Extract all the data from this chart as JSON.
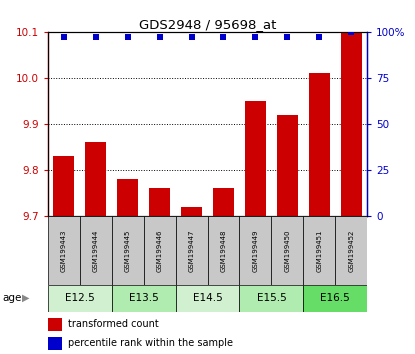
{
  "title": "GDS2948 / 95698_at",
  "samples": [
    "GSM199443",
    "GSM199444",
    "GSM199445",
    "GSM199446",
    "GSM199447",
    "GSM199448",
    "GSM199449",
    "GSM199450",
    "GSM199451",
    "GSM199452"
  ],
  "transformed_counts": [
    9.83,
    9.86,
    9.78,
    9.76,
    9.72,
    9.76,
    9.95,
    9.92,
    10.01,
    10.1
  ],
  "percentile_ranks": [
    97,
    97,
    97,
    97,
    97,
    97,
    97,
    97,
    97,
    100
  ],
  "ylim_left": [
    9.7,
    10.1
  ],
  "ylim_right": [
    0,
    100
  ],
  "bar_color": "#cc0000",
  "dot_color": "#0000cc",
  "sample_box_color": "#c8c8c8",
  "legend_bar_label": "transformed count",
  "legend_dot_label": "percentile rank within the sample",
  "age_label": "age",
  "right_axis_ticks": [
    0,
    25,
    50,
    75,
    100
  ],
  "right_axis_labels": [
    "0",
    "25",
    "50",
    "75",
    "100%"
  ],
  "left_axis_ticks": [
    9.7,
    9.8,
    9.9,
    10.0,
    10.1
  ],
  "age_group_list": [
    {
      "label": "E12.5",
      "start": 0,
      "end": 1,
      "color": "#d0f0d0"
    },
    {
      "label": "E13.5",
      "start": 2,
      "end": 3,
      "color": "#b0ebb0"
    },
    {
      "label": "E14.5",
      "start": 4,
      "end": 5,
      "color": "#d0f0d0"
    },
    {
      "label": "E15.5",
      "start": 6,
      "end": 7,
      "color": "#b0ebb0"
    },
    {
      "label": "E16.5",
      "start": 8,
      "end": 9,
      "color": "#66dd66"
    }
  ]
}
